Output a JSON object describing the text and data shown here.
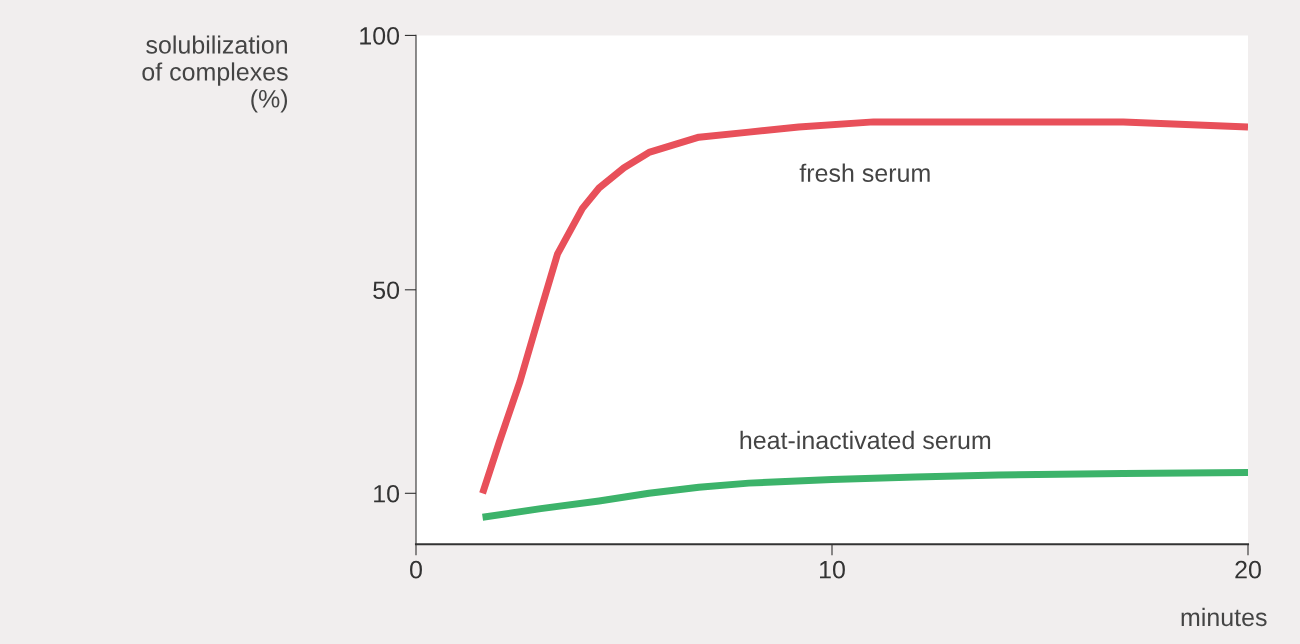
{
  "chart_data": {
    "type": "line",
    "ylabel": "solubilization\nof complexes\n(%)",
    "xlabel": "minutes",
    "xlim": [
      0,
      20
    ],
    "xticks": [
      0,
      10,
      20
    ],
    "ylim": [
      0,
      100
    ],
    "yticks": [
      10,
      50,
      100
    ],
    "grid": false,
    "legend": false,
    "marker": "none",
    "line_style": "solid",
    "series": [
      {
        "name": "fresh serum",
        "color": "#e8505a",
        "x": [
          1.6,
          2.0,
          2.5,
          3.0,
          3.4,
          4.0,
          4.4,
          5.0,
          5.6,
          6.8,
          8.0,
          9.2,
          11.0,
          14.0,
          17.0,
          20.0
        ],
        "values": [
          10,
          20,
          32,
          46,
          57,
          66,
          70,
          74,
          77,
          80,
          81,
          82,
          83,
          83,
          83,
          82
        ]
      },
      {
        "name": "heat-inactivated serum",
        "color": "#3cb36a",
        "x": [
          1.6,
          3.0,
          4.4,
          5.6,
          6.8,
          8.0,
          10.0,
          12.0,
          14.0,
          17.0,
          20.0
        ],
        "values": [
          5.3,
          7.0,
          8.5,
          10.0,
          11.2,
          12.0,
          12.7,
          13.2,
          13.6,
          13.9,
          14.1
        ]
      }
    ]
  }
}
